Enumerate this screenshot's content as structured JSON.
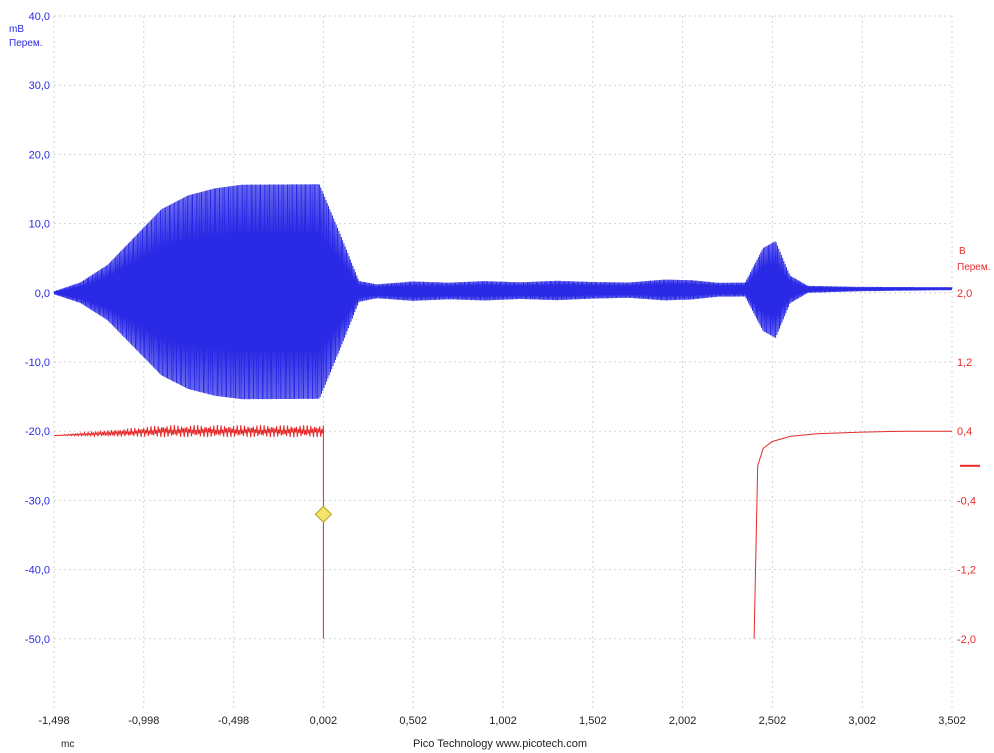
{
  "chart_data": {
    "type": "line",
    "footer": "Pico Technology   www.picotech.com",
    "x_axis": {
      "unit": "mc",
      "range": [
        -1.498,
        3.502
      ],
      "ticks": [
        "-1,498",
        "-0,998",
        "-0,498",
        "0,002",
        "0,502",
        "1,002",
        "1,502",
        "2,002",
        "2,502",
        "3,002",
        "3,502"
      ]
    },
    "left_axis": {
      "unit": "mB",
      "label": "Перем.",
      "range": [
        -60,
        40
      ],
      "tick_values": [
        40,
        30,
        20,
        10,
        0,
        -10,
        -20,
        -30,
        -40,
        -50
      ],
      "ticks": [
        "40,0",
        "30,0",
        "20,0",
        "10,0",
        "0,0",
        "-10,0",
        "-20,0",
        "-30,0",
        "-40,0",
        "-50,0"
      ],
      "color": "#2a2ae6"
    },
    "right_axis": {
      "unit": "B",
      "label": "Перем.",
      "range": [
        -2.0,
        2.0
      ],
      "tick_values": [
        2.0,
        1.2,
        0.4,
        -0.4,
        -1.2,
        -2.0
      ],
      "ticks": [
        "2,0",
        "1,2",
        "0,4",
        "-0,4",
        "-1,2",
        "-2,0"
      ],
      "color": "#e62a2a"
    },
    "grid": true,
    "series": [
      {
        "axis": "left",
        "color": "#2a2ae6",
        "description": "oscillating signal (envelope in mV)",
        "envelope_x": [
          -1.498,
          -1.35,
          -1.2,
          -1.05,
          -0.9,
          -0.75,
          -0.6,
          -0.45,
          -0.3,
          -0.15,
          -0.02,
          0.1,
          0.2,
          0.3,
          0.5,
          0.7,
          0.9,
          1.1,
          1.3,
          1.5,
          1.7,
          1.9,
          2.05,
          2.2,
          2.35,
          2.45,
          2.52,
          2.6,
          2.7,
          3.0,
          3.502
        ],
        "envelope_amp": [
          0.2,
          1.5,
          4.0,
          8.0,
          12.0,
          14.0,
          15.0,
          15.5,
          15.5,
          15.5,
          15.5,
          8.0,
          1.5,
          1.0,
          1.4,
          1.2,
          1.4,
          1.2,
          1.4,
          1.2,
          1.1,
          1.5,
          1.4,
          1.0,
          1.0,
          6.0,
          7.0,
          2.0,
          0.5,
          0.3,
          0.2
        ],
        "envelope_offset": 0.0,
        "baseline_end": 0.6
      },
      {
        "axis": "right",
        "color": "#e62a2a",
        "description": "drive voltage",
        "segment1_x": [
          -1.498,
          0.002
        ],
        "segment1_level": 0.4,
        "segment1_noise": 0.07,
        "step_down_x": 0.002,
        "step_down_to": -2.0,
        "recovery_x": [
          2.4,
          2.42,
          2.45,
          2.5,
          2.6,
          2.75,
          3.0,
          3.25,
          3.502
        ],
        "recovery_y": [
          -2.0,
          0.0,
          0.2,
          0.28,
          0.34,
          0.37,
          0.39,
          0.4,
          0.4
        ]
      }
    ],
    "trigger_marker": {
      "x": 0.002,
      "y_left": -32.0,
      "color": "#f3e56b"
    },
    "right_axis_marker": {
      "y_right": 0.0
    }
  }
}
